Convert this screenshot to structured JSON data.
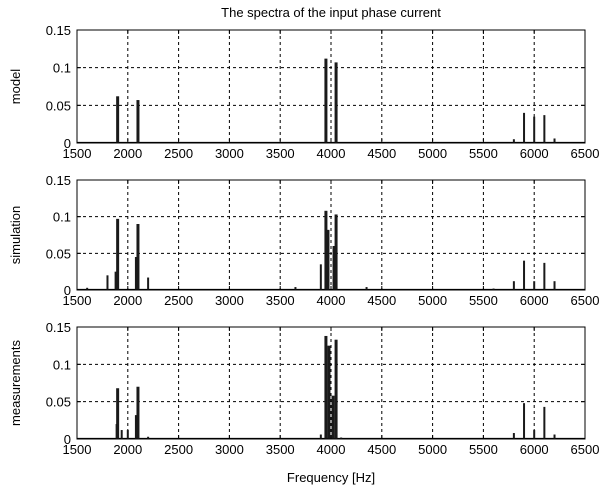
{
  "figure": {
    "title": "The spectra of the input phase current",
    "xlabel": "Frequency [Hz]"
  },
  "chart_data": [
    {
      "type": "bar",
      "title": "The spectra of the input phase current",
      "ylabel": "model",
      "xlabel": "",
      "xlim": [
        1500,
        6500
      ],
      "ylim": [
        0,
        0.15
      ],
      "xticks": [
        "1500",
        "2000",
        "2500",
        "3000",
        "3500",
        "4000",
        "4500",
        "5000",
        "5500",
        "6000",
        "6500"
      ],
      "yticks": [
        "0",
        "0.05",
        "0.1",
        "0.15"
      ],
      "grid": true,
      "x": [
        1900,
        2100,
        3950,
        4050,
        5800,
        5900,
        6000,
        6100,
        6200
      ],
      "values": [
        0.062,
        0.057,
        0.112,
        0.107,
        0.005,
        0.04,
        0.035,
        0.037,
        0.006
      ]
    },
    {
      "type": "bar",
      "title": "",
      "ylabel": "simulation",
      "xlabel": "",
      "xlim": [
        1500,
        6500
      ],
      "ylim": [
        0,
        0.15
      ],
      "xticks": [
        "1500",
        "2000",
        "2500",
        "3000",
        "3500",
        "4000",
        "4500",
        "5000",
        "5500",
        "6000",
        "6500"
      ],
      "yticks": [
        "0",
        "0.05",
        "0.1",
        "0.15"
      ],
      "grid": true,
      "x": [
        1600,
        1800,
        1880,
        1900,
        2080,
        2100,
        2200,
        3650,
        3900,
        3950,
        3970,
        4030,
        4050,
        4350,
        5600,
        5800,
        5900,
        6000,
        6100,
        6200
      ],
      "values": [
        0.003,
        0.02,
        0.025,
        0.097,
        0.045,
        0.09,
        0.017,
        0.004,
        0.035,
        0.108,
        0.082,
        0.06,
        0.103,
        0.004,
        0.002,
        0.012,
        0.04,
        0.012,
        0.037,
        0.012
      ]
    },
    {
      "type": "bar",
      "title": "",
      "ylabel": "measurements",
      "xlabel": "Frequency [Hz]",
      "xlim": [
        1500,
        6500
      ],
      "ylim": [
        0,
        0.15
      ],
      "xticks": [
        "1500",
        "2000",
        "2500",
        "3000",
        "3500",
        "4000",
        "4500",
        "5000",
        "5500",
        "6000",
        "6500"
      ],
      "yticks": [
        "0",
        "0.05",
        "0.1",
        "0.15"
      ],
      "grid": true,
      "x": [
        1890,
        1900,
        1940,
        2000,
        2080,
        2100,
        2200,
        3900,
        3950,
        3980,
        4020,
        4050,
        4100,
        5800,
        5900,
        6000,
        6100,
        6200
      ],
      "values": [
        0.02,
        0.068,
        0.012,
        0.012,
        0.032,
        0.07,
        0.003,
        0.006,
        0.138,
        0.125,
        0.058,
        0.133,
        0.002,
        0.008,
        0.048,
        0.012,
        0.043,
        0.006
      ]
    }
  ]
}
